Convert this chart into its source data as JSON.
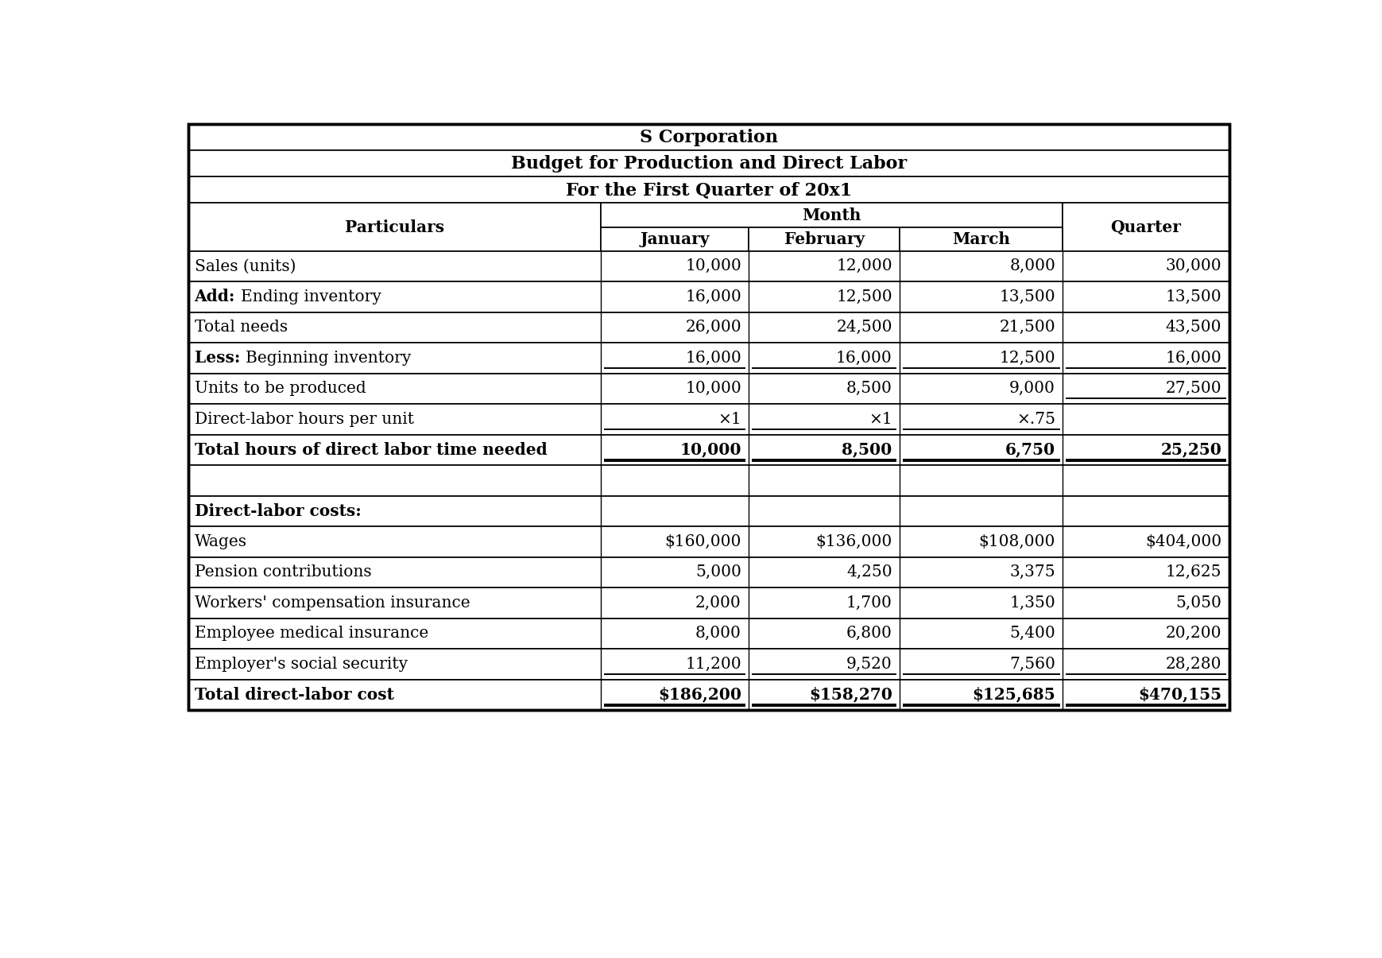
{
  "title1": "S Corporation",
  "title2": "Budget for Production and Direct Labor",
  "title3": "For the First Quarter of 20x1",
  "month_header": "Month",
  "col_headers_months": [
    "January",
    "February",
    "March"
  ],
  "rows": [
    {
      "label": "Sales (units)",
      "bold_prefix": "",
      "values": [
        "10,000",
        "12,000",
        "8,000",
        "30,000"
      ],
      "underline": [],
      "bold": false
    },
    {
      "label": "Ending inventory",
      "bold_prefix": "Add:",
      "values": [
        "16,000",
        "12,500",
        "13,500",
        "13,500"
      ],
      "underline": [],
      "bold": false
    },
    {
      "label": "Total needs",
      "bold_prefix": "",
      "values": [
        "26,000",
        "24,500",
        "21,500",
        "43,500"
      ],
      "underline": [],
      "bold": false
    },
    {
      "label": "Beginning inventory",
      "bold_prefix": "Less:",
      "values": [
        "16,000",
        "16,000",
        "12,500",
        "16,000"
      ],
      "underline": [
        0,
        1,
        2,
        3
      ],
      "bold": false
    },
    {
      "label": "Units to be produced",
      "bold_prefix": "",
      "values": [
        "10,000",
        "8,500",
        "9,000",
        "27,500"
      ],
      "underline": [
        3
      ],
      "bold": false
    },
    {
      "label": "Direct-labor hours per unit",
      "bold_prefix": "",
      "values": [
        "×1",
        "×1",
        "×.75",
        ""
      ],
      "underline": [
        0,
        1,
        2
      ],
      "bold": false
    },
    {
      "label": "Total hours of direct labor time needed",
      "bold_prefix": "",
      "values": [
        "10,000",
        "8,500",
        "6,750",
        "25,250"
      ],
      "underline": [
        0,
        1,
        2,
        3
      ],
      "bold": true
    },
    {
      "label": "",
      "bold_prefix": "",
      "values": [
        "",
        "",
        "",
        ""
      ],
      "underline": [],
      "bold": false
    },
    {
      "label": "Direct-labor costs:",
      "bold_prefix": "",
      "values": [
        "",
        "",
        "",
        ""
      ],
      "underline": [],
      "bold": true
    },
    {
      "label": "Wages",
      "bold_prefix": "",
      "values": [
        "$160,000",
        "$136,000",
        "$108,000",
        "$404,000"
      ],
      "underline": [],
      "bold": false
    },
    {
      "label": "Pension contributions",
      "bold_prefix": "",
      "values": [
        "5,000",
        "4,250",
        "3,375",
        "12,625"
      ],
      "underline": [],
      "bold": false
    },
    {
      "label": "Workers' compensation insurance",
      "bold_prefix": "",
      "values": [
        "2,000",
        "1,700",
        "1,350",
        "5,050"
      ],
      "underline": [],
      "bold": false
    },
    {
      "label": "Employee medical insurance",
      "bold_prefix": "",
      "values": [
        "8,000",
        "6,800",
        "5,400",
        "20,200"
      ],
      "underline": [],
      "bold": false
    },
    {
      "label": "Employer's social security",
      "bold_prefix": "",
      "values": [
        "11,200",
        "9,520",
        "7,560",
        "28,280"
      ],
      "underline": [
        0,
        1,
        2,
        3
      ],
      "bold": false
    },
    {
      "label": "Total direct-labor cost",
      "bold_prefix": "",
      "values": [
        "$186,200",
        "$158,270",
        "$125,685",
        "$470,155"
      ],
      "underline": [
        0,
        1,
        2,
        3
      ],
      "bold": true
    }
  ],
  "bg_color": "#ffffff",
  "border_color": "#000000",
  "font_size": 14.5,
  "title_font_size": 16.0
}
